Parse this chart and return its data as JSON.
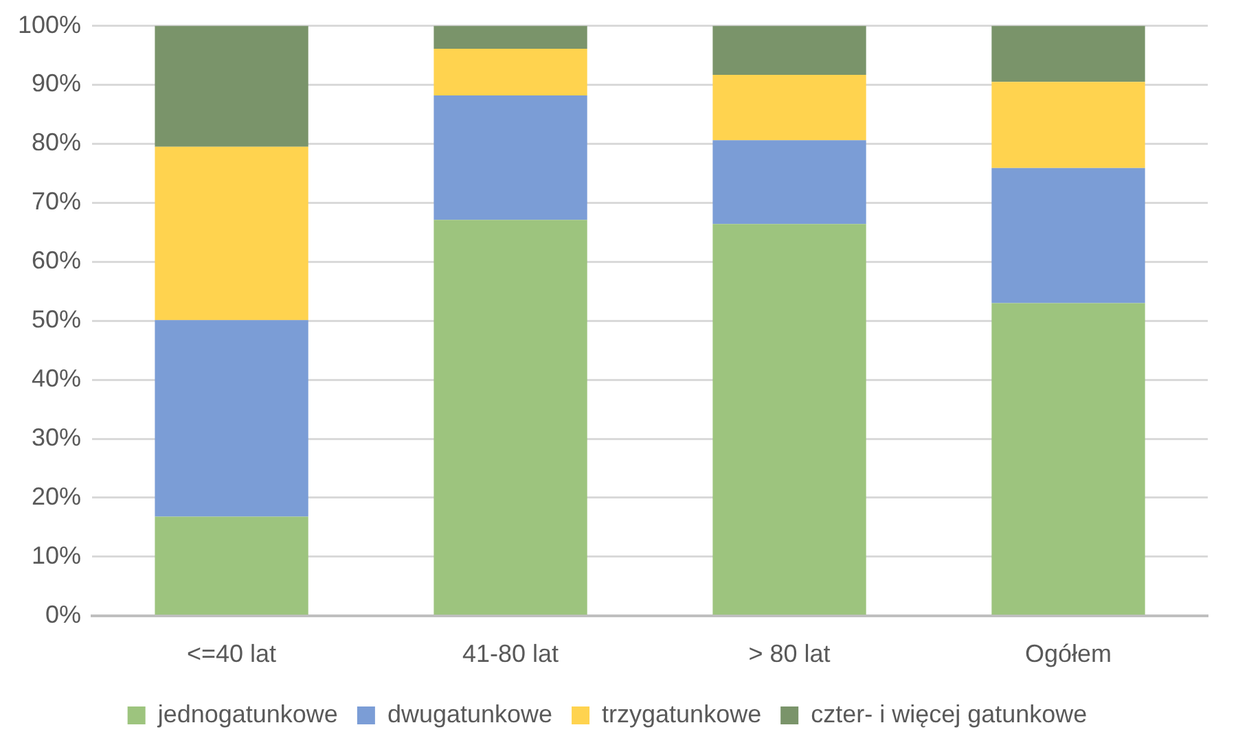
{
  "chart_data": {
    "type": "bar",
    "stacked": true,
    "categories": [
      "<=40 lat",
      "41-80 lat",
      "> 80 lat",
      "Ogółem"
    ],
    "series": [
      {
        "name": "jednogatunkowe",
        "color": "#9dc47e",
        "values": [
          16.8,
          67.1,
          66.4,
          53.0
        ]
      },
      {
        "name": "dwugatunkowe",
        "color": "#7b9dd6",
        "values": [
          33.3,
          21.1,
          14.2,
          22.9
        ]
      },
      {
        "name": "trzygatunkowe",
        "color": "#ffd34f",
        "values": [
          29.4,
          7.9,
          11.1,
          14.6
        ]
      },
      {
        "name": "czter- i więcej gatunkowe",
        "color": "#7a946a",
        "values": [
          20.5,
          3.9,
          8.3,
          9.5
        ]
      }
    ],
    "ylim": [
      0,
      100
    ],
    "yticks": [
      {
        "value": 0,
        "label": "0%"
      },
      {
        "value": 10,
        "label": "10%"
      },
      {
        "value": 20,
        "label": "20%"
      },
      {
        "value": 30,
        "label": "30%"
      },
      {
        "value": 40,
        "label": "40%"
      },
      {
        "value": 50,
        "label": "50%"
      },
      {
        "value": 60,
        "label": "60%"
      },
      {
        "value": 70,
        "label": "70%"
      },
      {
        "value": 80,
        "label": "80%"
      },
      {
        "value": 90,
        "label": "90%"
      },
      {
        "value": 100,
        "label": "100%"
      }
    ],
    "grid": "y",
    "legend": "bottom"
  }
}
